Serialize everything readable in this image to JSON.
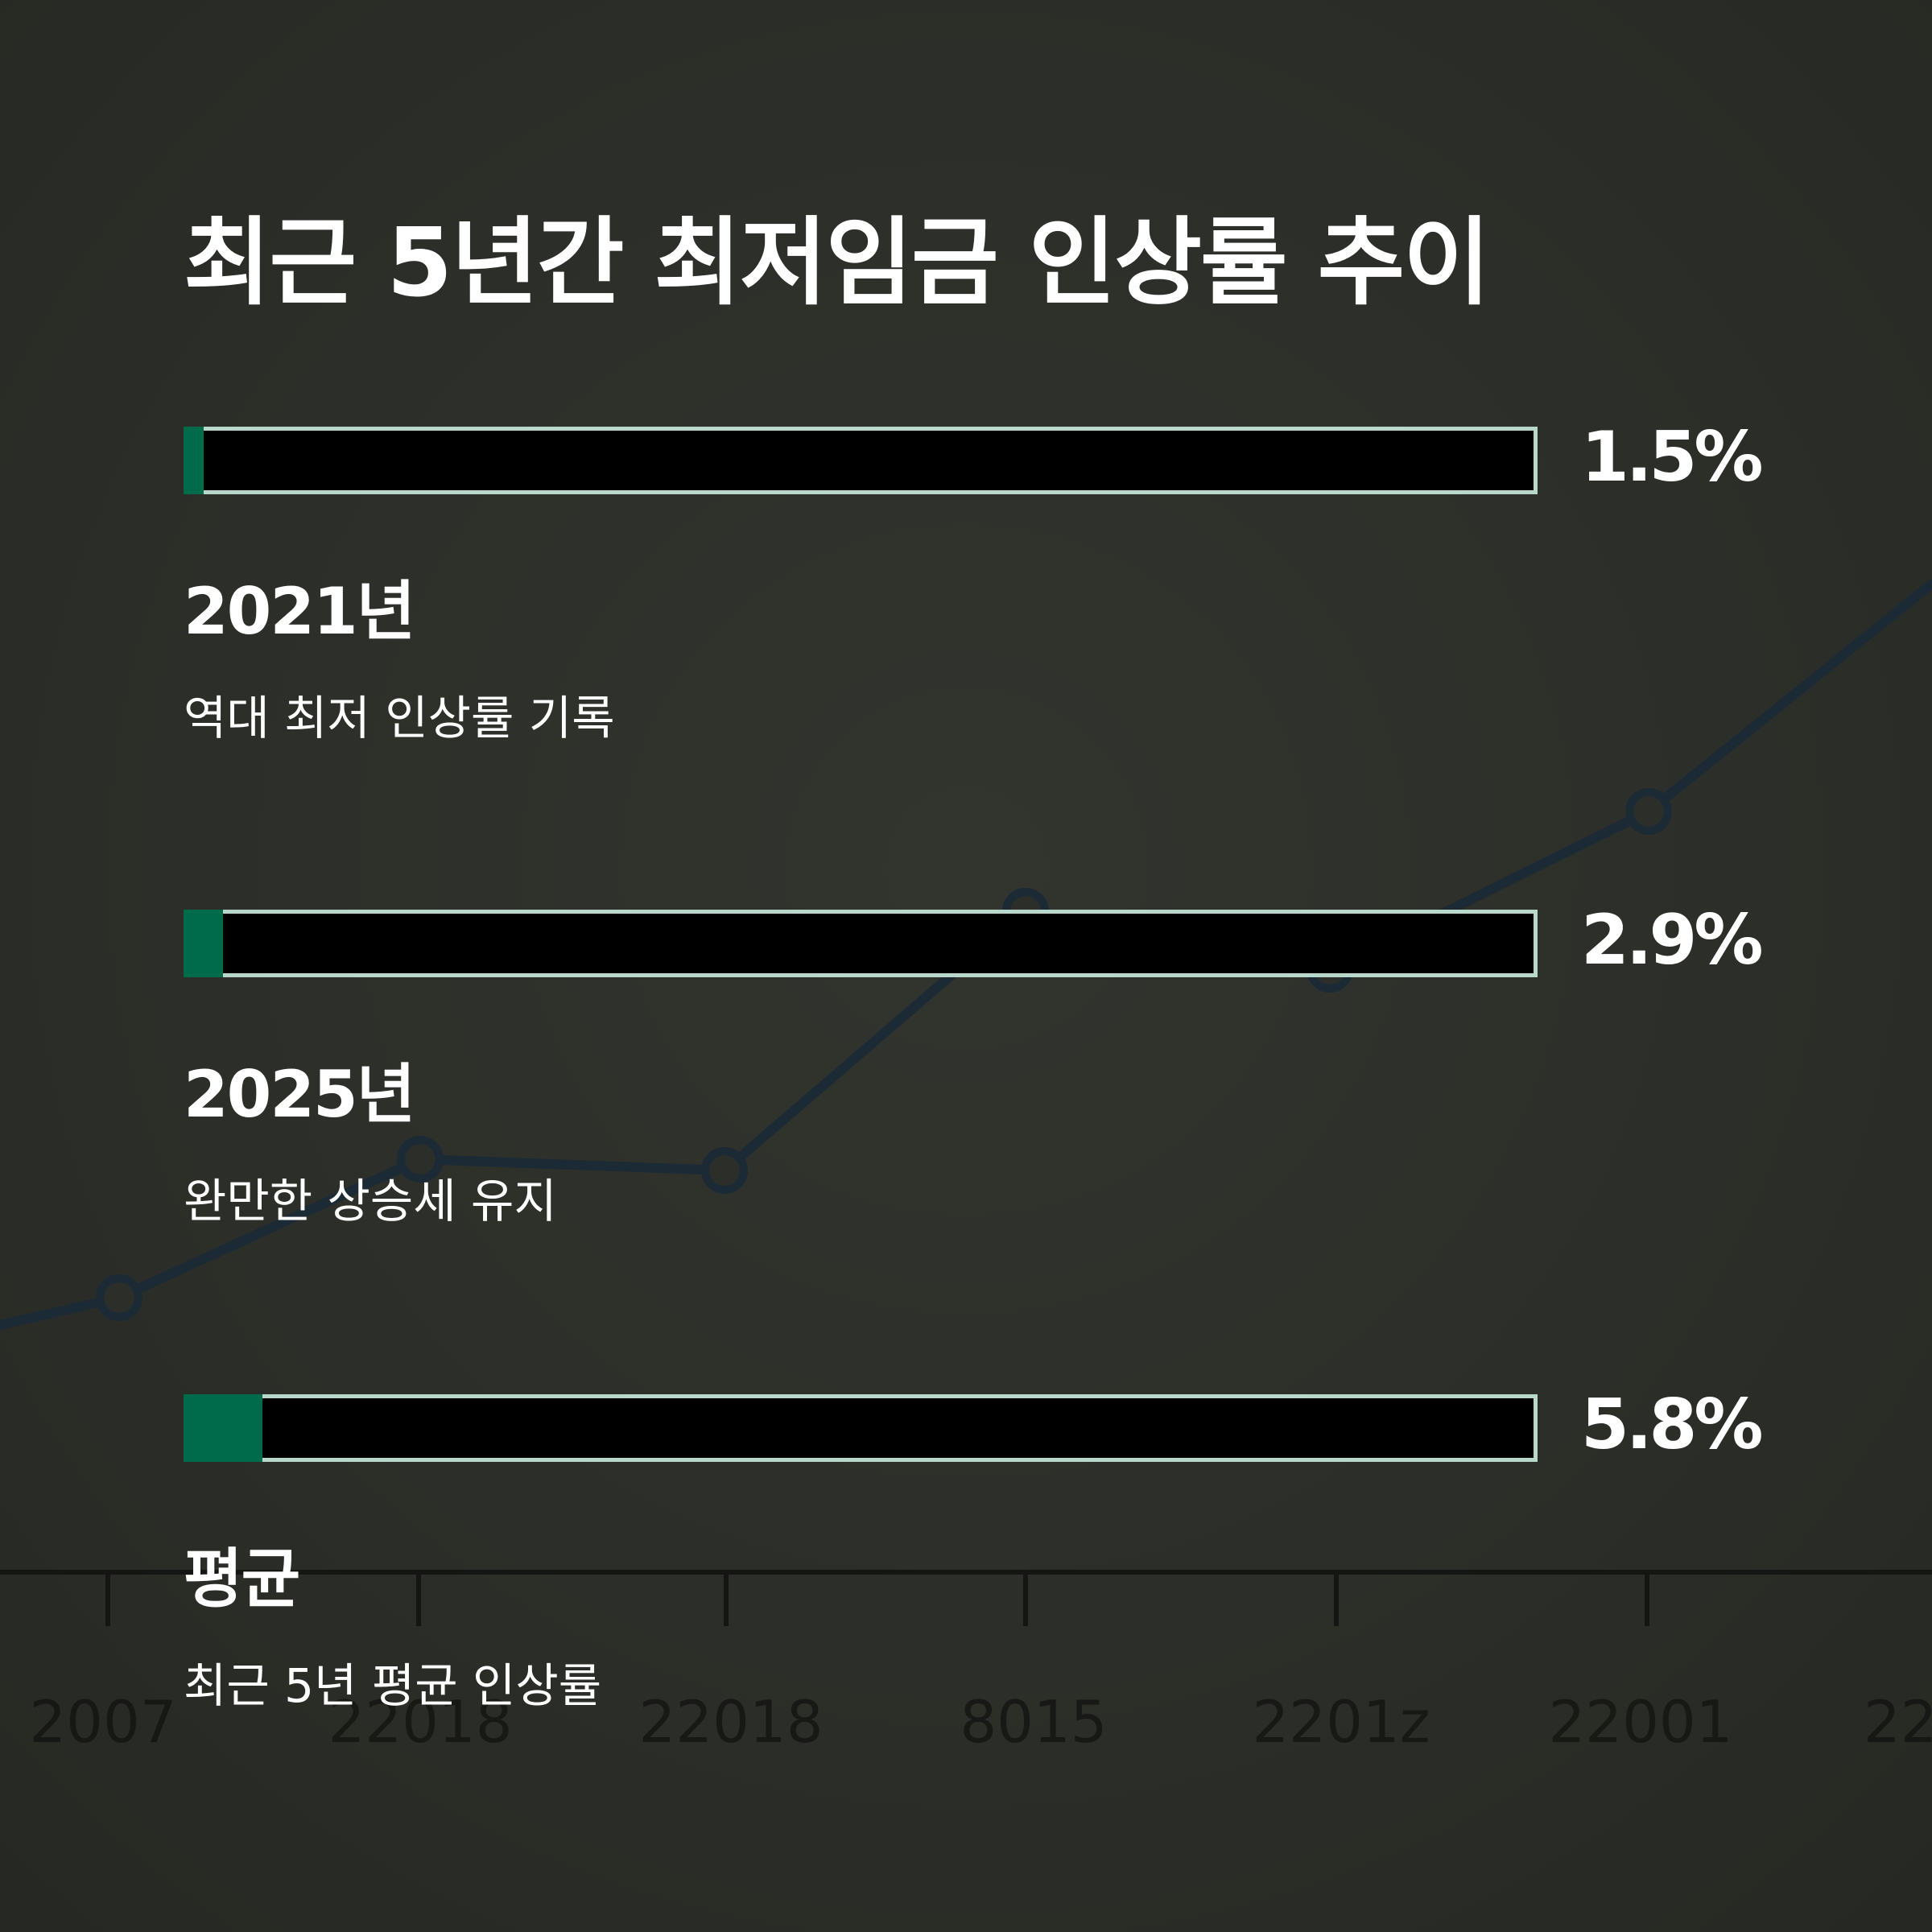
{
  "title": "최근 5년간 최저임금 인상률 추이",
  "colors": {
    "background": "#2c2e29",
    "track": "#000000",
    "track_border": "#b8d8cc",
    "fill": "#006b4a",
    "text": "#ffffff",
    "background_line": "#1b2a35"
  },
  "chart_data": {
    "type": "bar",
    "orientation": "horizontal",
    "title": "최근 5년간 최저임금 인상률 추이",
    "max_value": 100,
    "unit": "%",
    "bars": [
      {
        "label": "2021년",
        "value": 1.5,
        "value_label": "1.5%",
        "description": "역대 최저 인상률 기록"
      },
      {
        "label": "2025년",
        "value": 2.9,
        "value_label": "2.9%",
        "description": "완만한 상승세 유지"
      },
      {
        "label": "평균",
        "value": 5.8,
        "value_label": "5.8%",
        "description": "최근 5년 평균 인상률"
      }
    ],
    "background_graph": {
      "type": "line",
      "x_labels": [
        "2007",
        "22018",
        "22018",
        "8015",
        "2201z",
        "22001",
        "22"
      ]
    }
  }
}
